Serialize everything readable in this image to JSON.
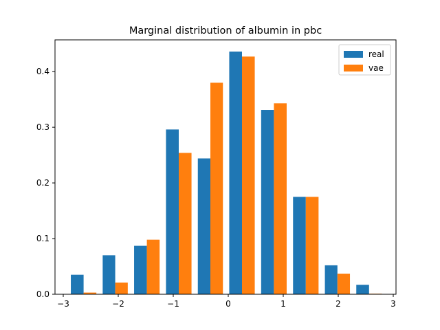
{
  "chart_data": {
    "type": "bar",
    "title": "Marginal distribution of albumin in pbc",
    "xlabel": "",
    "ylabel": "",
    "xlim": [
      -3.15,
      3.05
    ],
    "ylim": [
      0,
      0.457
    ],
    "xticks": [
      {
        "value": -3,
        "label": "−3"
      },
      {
        "value": -2,
        "label": "−2"
      },
      {
        "value": -1,
        "label": "−1"
      },
      {
        "value": 0,
        "label": "0"
      },
      {
        "value": 1,
        "label": "1"
      },
      {
        "value": 2,
        "label": "2"
      },
      {
        "value": 3,
        "label": "3"
      }
    ],
    "yticks": [
      {
        "value": 0.0,
        "label": "0.0"
      },
      {
        "value": 0.1,
        "label": "0.1"
      },
      {
        "value": 0.2,
        "label": "0.2"
      },
      {
        "value": 0.3,
        "label": "0.3"
      },
      {
        "value": 0.4,
        "label": "0.4"
      }
    ],
    "bin_edges": [
      -2.92,
      -2.34,
      -1.77,
      -1.19,
      -0.61,
      -0.04,
      0.54,
      1.12,
      1.7,
      2.27,
      2.85
    ],
    "series": [
      {
        "name": "real",
        "color": "#1f77b4",
        "values": [
          0.035,
          0.07,
          0.087,
          0.296,
          0.244,
          0.436,
          0.331,
          0.175,
          0.052,
          0.017
        ]
      },
      {
        "name": "vae",
        "color": "#ff7f0e",
        "values": [
          0.003,
          0.021,
          0.098,
          0.254,
          0.38,
          0.427,
          0.343,
          0.175,
          0.037,
          0.001
        ]
      }
    ],
    "legend": {
      "position": "top-right"
    },
    "grid": false
  }
}
